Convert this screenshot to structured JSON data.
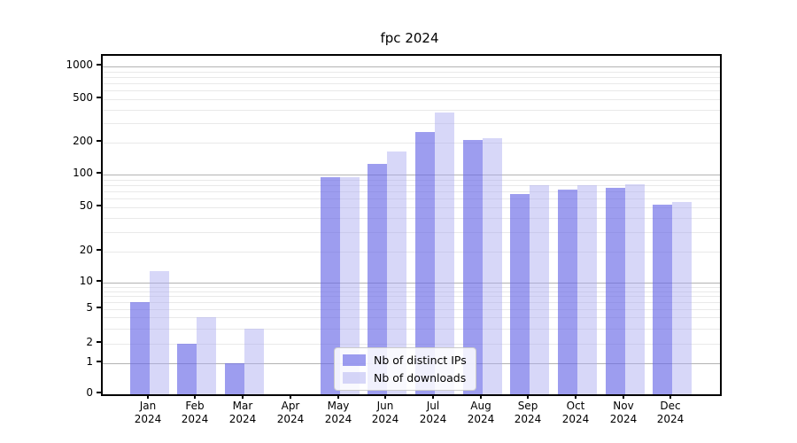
{
  "title": "fpc 2024",
  "chart_data": {
    "type": "bar",
    "title": "fpc 2024",
    "xlabel": "",
    "ylabel": "",
    "scale": "symlog",
    "grid": true,
    "legend_position": "lower center",
    "categories": [
      "Jan",
      "Feb",
      "Mar",
      "Apr",
      "May",
      "Jun",
      "Jul",
      "Aug",
      "Sep",
      "Oct",
      "Nov",
      "Dec"
    ],
    "year": "2024",
    "yticks": [
      0,
      1,
      2,
      5,
      10,
      20,
      50,
      100,
      200,
      500,
      1000
    ],
    "ylim": [
      0,
      1400
    ],
    "series": [
      {
        "key": "distinct-ips",
        "name": "Nb of distinct IPs",
        "color": "rgba(102,102,230,0.64)",
        "values": [
          6,
          2,
          1,
          0,
          95,
          125,
          250,
          210,
          66,
          73,
          76,
          53
        ]
      },
      {
        "key": "downloads",
        "name": "Nb of downloads",
        "color": "rgba(170,170,240,0.47)",
        "values": [
          13,
          4,
          3,
          0,
          95,
          165,
          380,
          220,
          80,
          80,
          81,
          56
        ]
      }
    ]
  }
}
